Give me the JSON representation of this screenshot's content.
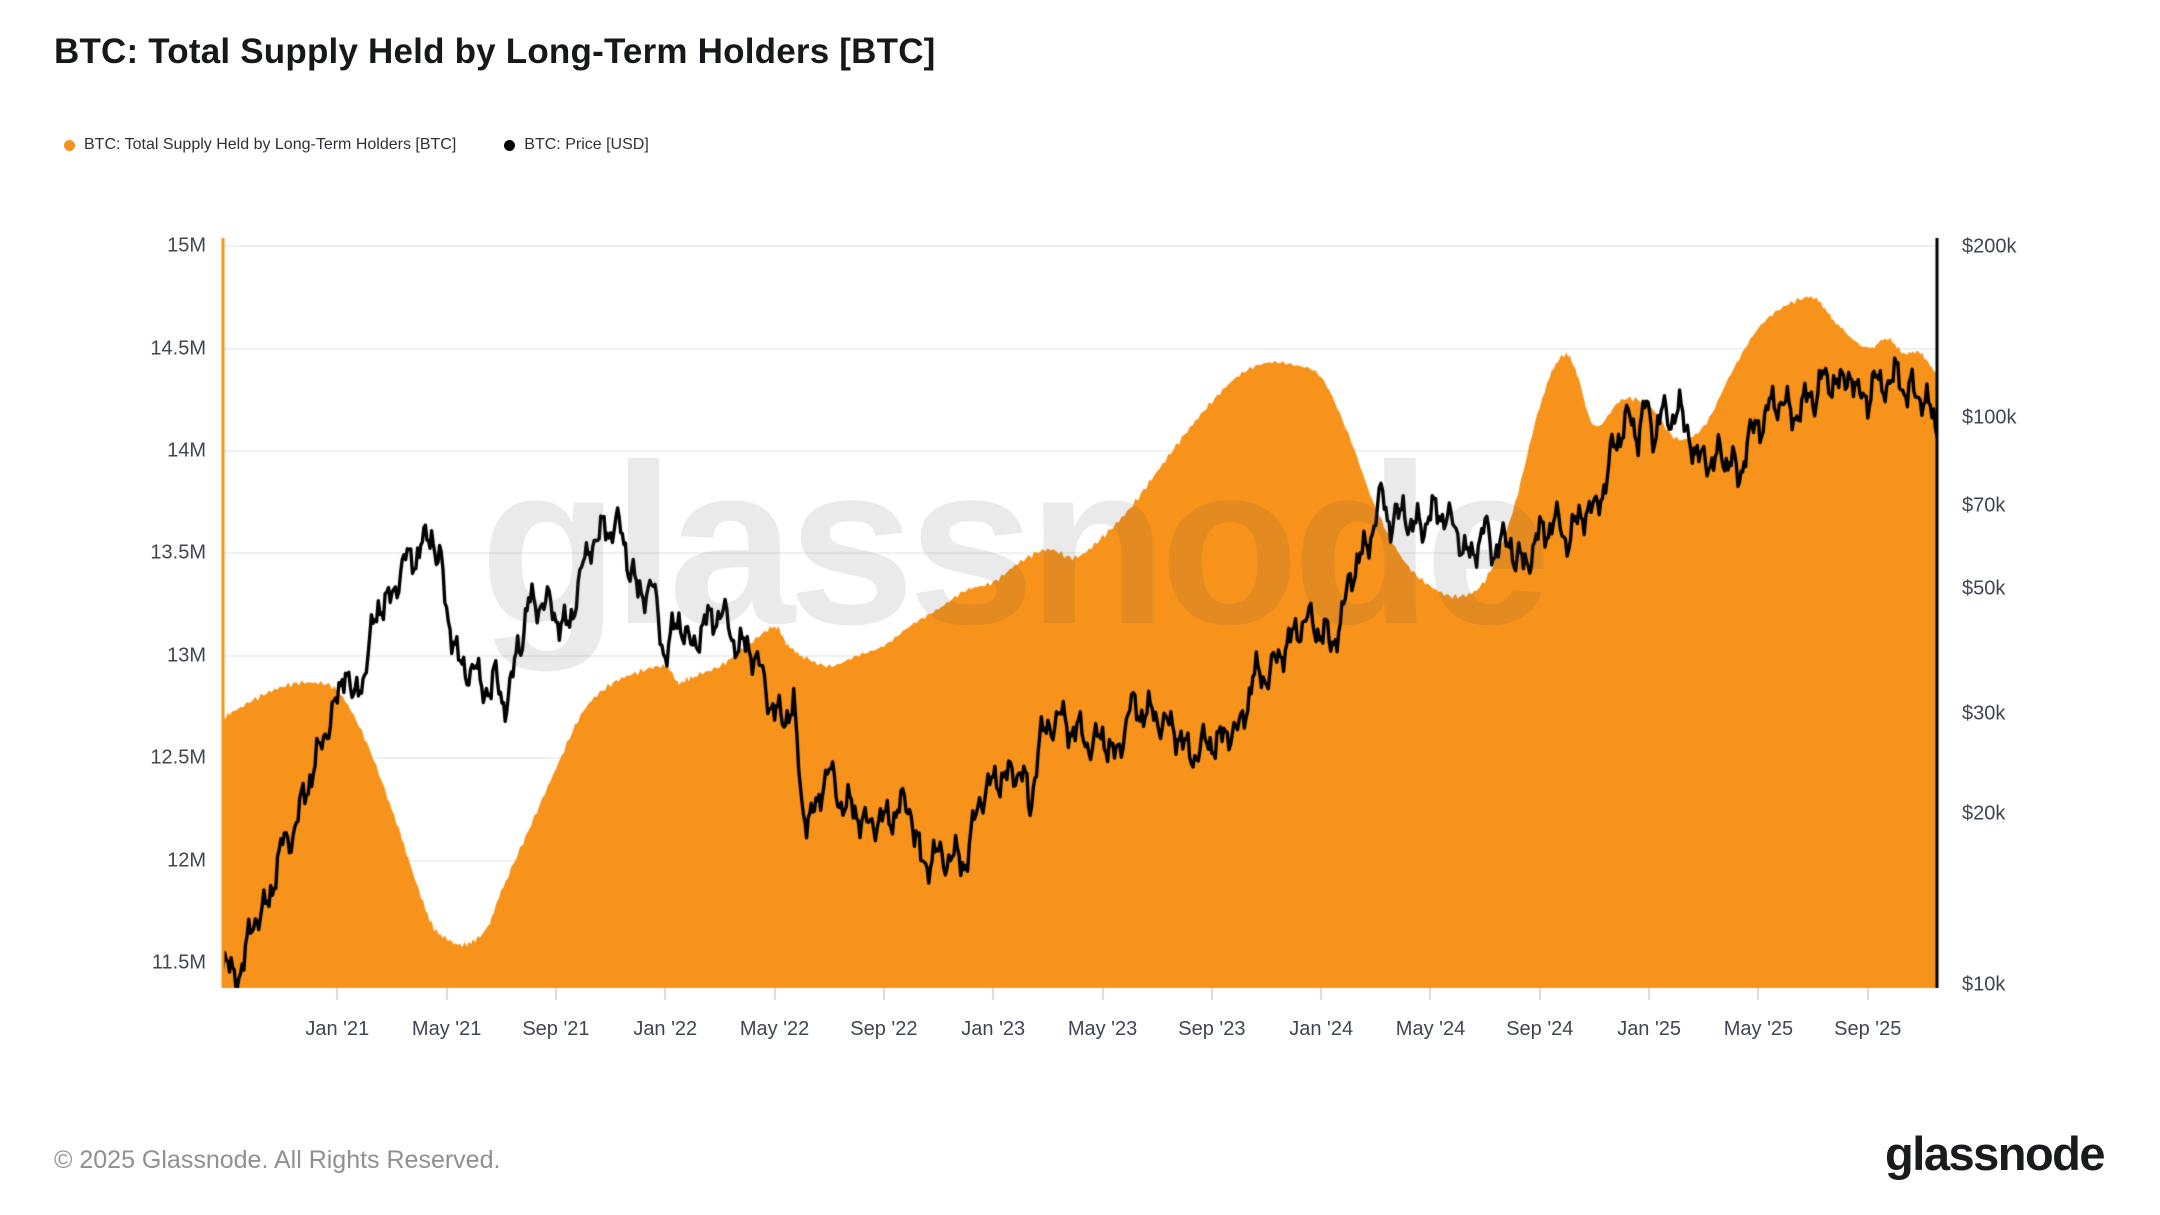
{
  "header": {
    "title": "BTC: Total Supply Held by Long-Term Holders [BTC]"
  },
  "legend": [
    {
      "label": "BTC: Total Supply Held by Long-Term Holders [BTC]",
      "color": "#F7931A"
    },
    {
      "label": "BTC: Price [USD]",
      "color": "#000000"
    }
  ],
  "watermark": "glassnode",
  "footer": {
    "copyright": "© 2025 Glassnode. All Rights Reserved.",
    "logo_text": "glassnode"
  },
  "chart_data": {
    "type": "area+line",
    "title": "BTC: Total Supply Held by Long-Term Holders [BTC]",
    "x_axis": {
      "t_unit": "months since 2020-09-01",
      "range_t": [
        -0.25,
        62.6
      ],
      "tick_t": [
        4,
        8,
        12,
        16,
        20,
        24,
        28,
        32,
        36,
        40,
        44,
        48,
        52,
        56,
        60
      ],
      "tick_labels": [
        "Jan '21",
        "May '21",
        "Sep '21",
        "Jan '22",
        "May '22",
        "Sep '22",
        "Jan '23",
        "May '23",
        "Sep '23",
        "Jan '24",
        "May '24",
        "Sep '24",
        "Jan '25",
        "May '25",
        "Sep '25"
      ]
    },
    "left_axis": {
      "unit": "BTC supply (millions)",
      "scale": "linear",
      "tick_values": [
        15,
        14.5,
        14,
        13.5,
        13,
        12.5,
        12,
        11.5
      ],
      "tick_labels": [
        "15M",
        "14.5M",
        "14M",
        "13.5M",
        "13M",
        "12.5M",
        "12M",
        "11.5M"
      ],
      "axis_line_color": "#F7931A",
      "grid": true
    },
    "right_axis": {
      "unit": "USD (thousands)",
      "scale": "log",
      "tick_values": [
        200,
        100,
        70,
        50,
        30,
        20,
        10
      ],
      "tick_labels": [
        "$200k",
        "$100k",
        "$70k",
        "$50k",
        "$30k",
        "$20k",
        "$10k"
      ],
      "axis_line_color": "#000000",
      "grid": false
    },
    "series": [
      {
        "name": "BTC: Total Supply Held by Long-Term Holders [BTC]",
        "type": "area",
        "axis": "left",
        "color": "#F7931A",
        "points": [
          [
            -0.25,
            12.68
          ],
          [
            0,
            12.71
          ],
          [
            1,
            12.79
          ],
          [
            2,
            12.85
          ],
          [
            3,
            12.87
          ],
          [
            4,
            12.83
          ],
          [
            5,
            12.6
          ],
          [
            6,
            12.25
          ],
          [
            6.5,
            12.05
          ],
          [
            7,
            11.85
          ],
          [
            7.5,
            11.68
          ],
          [
            8,
            11.62
          ],
          [
            8.5,
            11.59
          ],
          [
            9,
            11.61
          ],
          [
            9.5,
            11.68
          ],
          [
            10,
            11.85
          ],
          [
            11,
            12.15
          ],
          [
            12,
            12.45
          ],
          [
            13,
            12.73
          ],
          [
            14,
            12.86
          ],
          [
            15,
            12.92
          ],
          [
            16,
            12.95
          ],
          [
            16.5,
            12.87
          ],
          [
            17,
            12.9
          ],
          [
            18,
            12.95
          ],
          [
            19,
            13.05
          ],
          [
            20,
            13.14
          ],
          [
            20.5,
            13.05
          ],
          [
            21,
            13.0
          ],
          [
            22,
            12.95
          ],
          [
            23,
            13.0
          ],
          [
            24,
            13.05
          ],
          [
            25,
            13.15
          ],
          [
            26,
            13.23
          ],
          [
            27,
            13.32
          ],
          [
            28,
            13.36
          ],
          [
            29,
            13.46
          ],
          [
            30,
            13.52
          ],
          [
            31,
            13.48
          ],
          [
            32,
            13.58
          ],
          [
            33,
            13.72
          ],
          [
            34,
            13.9
          ],
          [
            35,
            14.08
          ],
          [
            36,
            14.24
          ],
          [
            37,
            14.37
          ],
          [
            38,
            14.43
          ],
          [
            39,
            14.42
          ],
          [
            40,
            14.36
          ],
          [
            41,
            14.08
          ],
          [
            42,
            13.72
          ],
          [
            43,
            13.47
          ],
          [
            44,
            13.34
          ],
          [
            45,
            13.29
          ],
          [
            46,
            13.37
          ],
          [
            47,
            13.7
          ],
          [
            48,
            14.22
          ],
          [
            48.8,
            14.46
          ],
          [
            49.3,
            14.4
          ],
          [
            50,
            14.12
          ],
          [
            51,
            14.25
          ],
          [
            52,
            14.22
          ],
          [
            53,
            14.06
          ],
          [
            54,
            14.12
          ],
          [
            55,
            14.38
          ],
          [
            56,
            14.6
          ],
          [
            57,
            14.71
          ],
          [
            58,
            14.75
          ],
          [
            58.5,
            14.68
          ],
          [
            59,
            14.6
          ],
          [
            60,
            14.5
          ],
          [
            60.7,
            14.55
          ],
          [
            61.3,
            14.48
          ],
          [
            62,
            14.47
          ],
          [
            62.6,
            14.35
          ]
        ]
      },
      {
        "name": "BTC: Price [USD]",
        "type": "line",
        "axis": "right",
        "color": "#000000",
        "points": [
          [
            -0.25,
            11.2
          ],
          [
            0,
            10.6
          ],
          [
            0.4,
            10.4
          ],
          [
            1,
            13.2
          ],
          [
            1.5,
            14.0
          ],
          [
            2,
            17.8
          ],
          [
            2.5,
            19.0
          ],
          [
            3,
            23.5
          ],
          [
            3.5,
            27.0
          ],
          [
            4,
            32.0
          ],
          [
            4.3,
            36.5
          ],
          [
            4.6,
            31.5
          ],
          [
            5,
            36.0
          ],
          [
            5.5,
            46.5
          ],
          [
            6,
            48.5
          ],
          [
            6.5,
            56.0
          ],
          [
            7,
            58.5
          ],
          [
            7.45,
            62.5
          ],
          [
            7.8,
            55.0
          ],
          [
            8,
            45.0
          ],
          [
            8.5,
            36.5
          ],
          [
            9,
            36.0
          ],
          [
            9.4,
            33.0
          ],
          [
            9.8,
            34.5
          ],
          [
            10.2,
            31.0
          ],
          [
            10.6,
            39.0
          ],
          [
            11,
            46.5
          ],
          [
            11.5,
            48.0
          ],
          [
            12,
            44.5
          ],
          [
            12.5,
            43.0
          ],
          [
            13,
            55.0
          ],
          [
            13.4,
            61.5
          ],
          [
            13.7,
            63.0
          ],
          [
            14,
            63.5
          ],
          [
            14.2,
            66.5
          ],
          [
            14.6,
            57.5
          ],
          [
            15,
            49.0
          ],
          [
            15.5,
            50.5
          ],
          [
            16,
            38.5
          ],
          [
            16.5,
            44.0
          ],
          [
            17,
            39.5
          ],
          [
            17.5,
            43.5
          ],
          [
            18,
            46.0
          ],
          [
            18.5,
            40.5
          ],
          [
            19,
            39.5
          ],
          [
            19.5,
            36.0
          ],
          [
            20,
            30.0
          ],
          [
            20.4,
            29.5
          ],
          [
            20.7,
            31.5
          ],
          [
            21,
            20.5
          ],
          [
            21.4,
            19.5
          ],
          [
            21.8,
            23.0
          ],
          [
            22,
            23.5
          ],
          [
            22.5,
            21.0
          ],
          [
            23,
            20.0
          ],
          [
            23.5,
            19.2
          ],
          [
            24,
            19.5
          ],
          [
            24.5,
            20.5
          ],
          [
            25,
            20.5
          ],
          [
            25.35,
            16.3
          ],
          [
            25.7,
            16.6
          ],
          [
            26,
            17.1
          ],
          [
            26.5,
            16.6
          ],
          [
            27,
            16.7
          ],
          [
            27.5,
            21.0
          ],
          [
            28,
            23.2
          ],
          [
            28.5,
            23.0
          ],
          [
            29,
            24.5
          ],
          [
            29.35,
            20.3
          ],
          [
            29.7,
            27.5
          ],
          [
            30,
            28.2
          ],
          [
            30.5,
            29.8
          ],
          [
            31,
            28.0
          ],
          [
            31.5,
            26.8
          ],
          [
            32,
            27.2
          ],
          [
            32.5,
            25.3
          ],
          [
            33,
            30.5
          ],
          [
            33.5,
            30.8
          ],
          [
            34,
            29.2
          ],
          [
            34.5,
            29.0
          ],
          [
            35,
            26.0
          ],
          [
            35.5,
            25.8
          ],
          [
            36,
            26.9
          ],
          [
            36.5,
            27.5
          ],
          [
            37,
            28.3
          ],
          [
            37.5,
            34.5
          ],
          [
            38,
            35.5
          ],
          [
            38.5,
            37.8
          ],
          [
            39,
            42.0
          ],
          [
            39.5,
            43.8
          ],
          [
            40,
            42.6
          ],
          [
            40.35,
            39.8
          ],
          [
            40.7,
            43.0
          ],
          [
            41,
            51.5
          ],
          [
            41.5,
            57.0
          ],
          [
            42,
            67.0
          ],
          [
            42.25,
            72.5
          ],
          [
            42.6,
            64.5
          ],
          [
            43,
            69.5
          ],
          [
            43.35,
            63.5
          ],
          [
            44,
            67.0
          ],
          [
            44.5,
            69.0
          ],
          [
            45,
            61.5
          ],
          [
            45.5,
            56.8
          ],
          [
            46,
            64.0
          ],
          [
            46.3,
            58.0
          ],
          [
            46.6,
            61.0
          ],
          [
            47,
            59.0
          ],
          [
            47.4,
            54.5
          ],
          [
            47.75,
            58.5
          ],
          [
            48,
            63.0
          ],
          [
            48.5,
            65.5
          ],
          [
            49,
            61.5
          ],
          [
            49.5,
            67.0
          ],
          [
            50,
            69.5
          ],
          [
            50.35,
            75.0
          ],
          [
            50.7,
            89.0
          ],
          [
            51,
            96.5
          ],
          [
            51.3,
            98.5
          ],
          [
            51.6,
            95.0
          ],
          [
            51.9,
            104.0
          ],
          [
            52.2,
            94.0
          ],
          [
            52.5,
            102.0
          ],
          [
            52.8,
            100.0
          ],
          [
            53,
            104.0
          ],
          [
            53.4,
            96.0
          ],
          [
            53.7,
            84.5
          ],
          [
            54,
            86.0
          ],
          [
            54.3,
            82.5
          ],
          [
            54.65,
            87.0
          ],
          [
            55,
            83.5
          ],
          [
            55.25,
            77.5
          ],
          [
            55.7,
            94.5
          ],
          [
            56,
            96.5
          ],
          [
            56.4,
            103.5
          ],
          [
            56.7,
            108.5
          ],
          [
            57,
            104.5
          ],
          [
            57.35,
            100.5
          ],
          [
            57.7,
            107.5
          ],
          [
            58,
            108.5
          ],
          [
            58.4,
            117.5
          ],
          [
            58.75,
            115.5
          ],
          [
            59,
            113.5
          ],
          [
            59.3,
            121.5
          ],
          [
            59.65,
            109.0
          ],
          [
            60,
            109.5
          ],
          [
            60.4,
            117.0
          ],
          [
            60.75,
            113.5
          ],
          [
            61.1,
            121.0
          ],
          [
            61.45,
            109.5
          ],
          [
            61.8,
            112.5
          ],
          [
            62.1,
            105.5
          ],
          [
            62.6,
            97.5
          ]
        ]
      }
    ],
    "style": {
      "grid_color": "#efefef",
      "tick_mark_color": "#d9d9d9",
      "price_line_width": 3.4
    }
  }
}
